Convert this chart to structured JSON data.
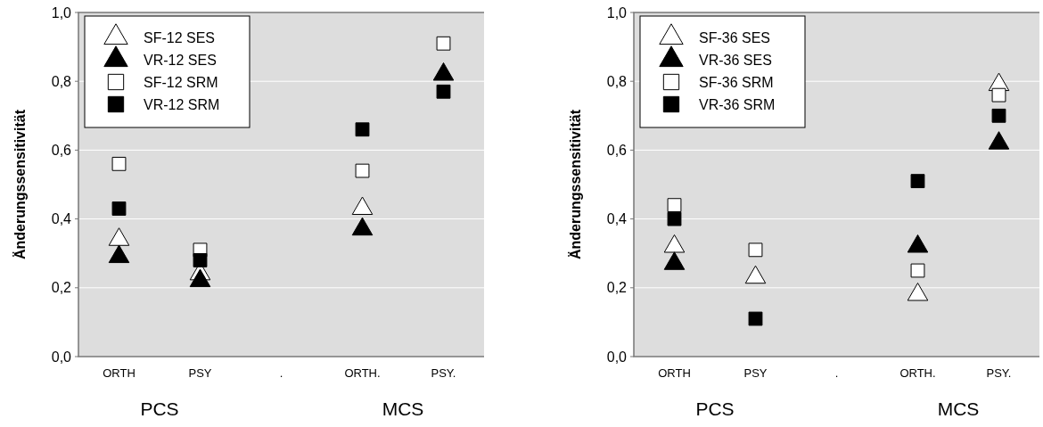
{
  "chart_data": [
    {
      "type": "scatter",
      "ylabel": "Änderungssensitivität",
      "categories": [
        "ORTH",
        "PSY",
        ".",
        "ORTH.",
        "PSY."
      ],
      "ylim": [
        0,
        1
      ],
      "yticks": [
        {
          "value": 0,
          "label": "0,0"
        },
        {
          "value": 0.2,
          "label": "0,2"
        },
        {
          "value": 0.4,
          "label": "0,4"
        },
        {
          "value": 0.6,
          "label": "0,6"
        },
        {
          "value": 0.8,
          "label": "0,8"
        },
        {
          "value": 1,
          "label": "1,0"
        }
      ],
      "grid": "y",
      "legend": "top left",
      "annotations": [
        "PCS",
        "MCS"
      ],
      "series": [
        {
          "name": "SF-12 SES",
          "color": "#ffffff",
          "marker": "triangle",
          "values": [
            0.34,
            0.24,
            null,
            0.43,
            null
          ]
        },
        {
          "name": "VR-12 SES",
          "color": "#000000",
          "marker": "triangle",
          "values": [
            0.29,
            0.22,
            null,
            0.37,
            0.82
          ]
        },
        {
          "name": "SF-12 SRM",
          "color": "#ffffff",
          "marker": "square",
          "values": [
            0.56,
            0.31,
            null,
            0.54,
            0.91
          ]
        },
        {
          "name": "VR-12 SRM",
          "color": "#000000",
          "marker": "square",
          "values": [
            0.43,
            0.28,
            null,
            0.66,
            0.77
          ]
        }
      ]
    },
    {
      "type": "scatter",
      "ylabel": "Änderungssensitivität",
      "categories": [
        "ORTH",
        "PSY",
        ".",
        "ORTH.",
        "PSY."
      ],
      "ylim": [
        0,
        1
      ],
      "yticks": [
        {
          "value": 0,
          "label": "0,0"
        },
        {
          "value": 0.2,
          "label": "0,2"
        },
        {
          "value": 0.4,
          "label": "0,4"
        },
        {
          "value": 0.6,
          "label": "0,6"
        },
        {
          "value": 0.8,
          "label": "0,8"
        },
        {
          "value": 1,
          "label": "1,0"
        }
      ],
      "grid": "y",
      "legend": "top left",
      "annotations": [
        "PCS",
        "MCS"
      ],
      "series": [
        {
          "name": "SF-36 SES",
          "color": "#ffffff",
          "marker": "triangle",
          "values": [
            0.32,
            0.23,
            null,
            0.18,
            0.79
          ]
        },
        {
          "name": "VR-36 SES",
          "color": "#000000",
          "marker": "triangle",
          "values": [
            0.27,
            null,
            null,
            0.32,
            0.62
          ]
        },
        {
          "name": "SF-36 SRM",
          "color": "#ffffff",
          "marker": "square",
          "values": [
            0.44,
            0.31,
            null,
            0.25,
            0.76
          ]
        },
        {
          "name": "VR-36 SRM",
          "color": "#000000",
          "marker": "square",
          "values": [
            0.4,
            0.11,
            null,
            0.51,
            0.7
          ]
        }
      ]
    }
  ]
}
